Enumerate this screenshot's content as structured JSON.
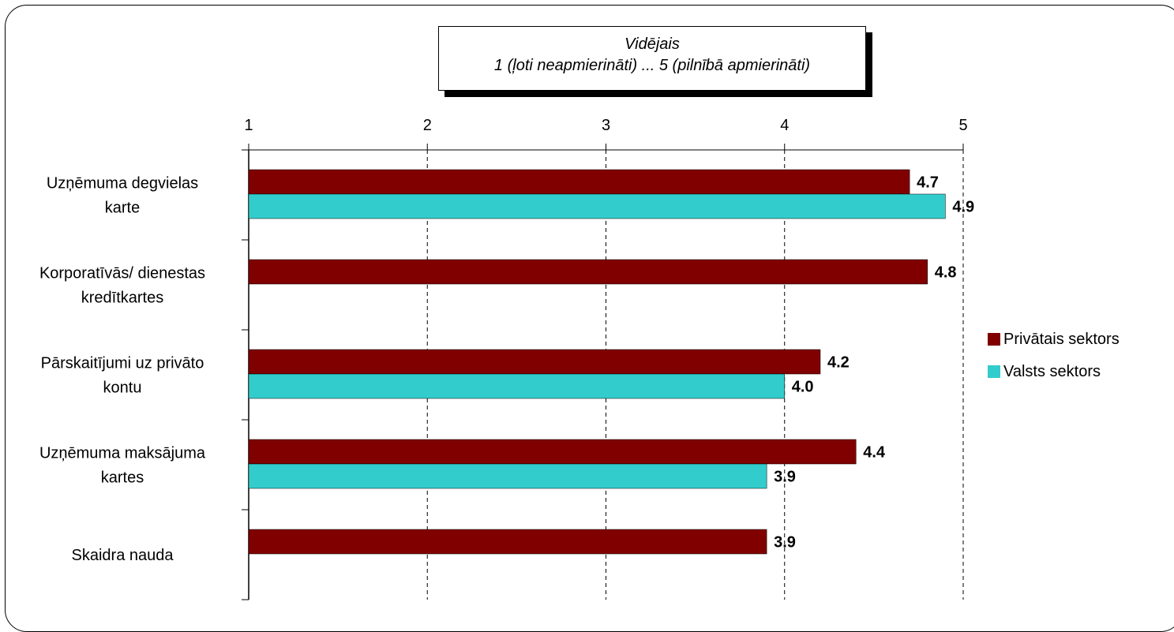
{
  "chart_data": {
    "type": "bar",
    "orientation": "horizontal",
    "title": [
      "Vidējais",
      "1 (ļoti neapmierināti) ... 5 (pilnībā apmierināti)"
    ],
    "xlim": [
      1,
      5
    ],
    "xticks": [
      "1",
      "2",
      "3",
      "4",
      "5"
    ],
    "grid": "vertical-dashed",
    "legend_position": "right",
    "categories": [
      [
        "Uzņēmuma degvielas",
        "karte"
      ],
      [
        "Korporatīvās/ dienestas",
        "kredītkartes"
      ],
      [
        "Pārskaitījumi uz privāto",
        "kontu"
      ],
      [
        "Uzņēmuma maksājuma",
        "kartes"
      ],
      [
        "Skaidra nauda"
      ]
    ],
    "series": [
      {
        "name": "Privātais sektors",
        "color": "#800000",
        "values": [
          4.7,
          4.8,
          4.2,
          4.4,
          3.9
        ],
        "labels": [
          "4.7",
          "4.8",
          "4.2",
          "4.4",
          "3.9"
        ]
      },
      {
        "name": "Valsts sektors",
        "color": "#33CCCC",
        "values": [
          4.9,
          null,
          4.0,
          3.9,
          null
        ],
        "labels": [
          "4.9",
          null,
          "4.0",
          "3.9",
          null
        ]
      }
    ]
  }
}
